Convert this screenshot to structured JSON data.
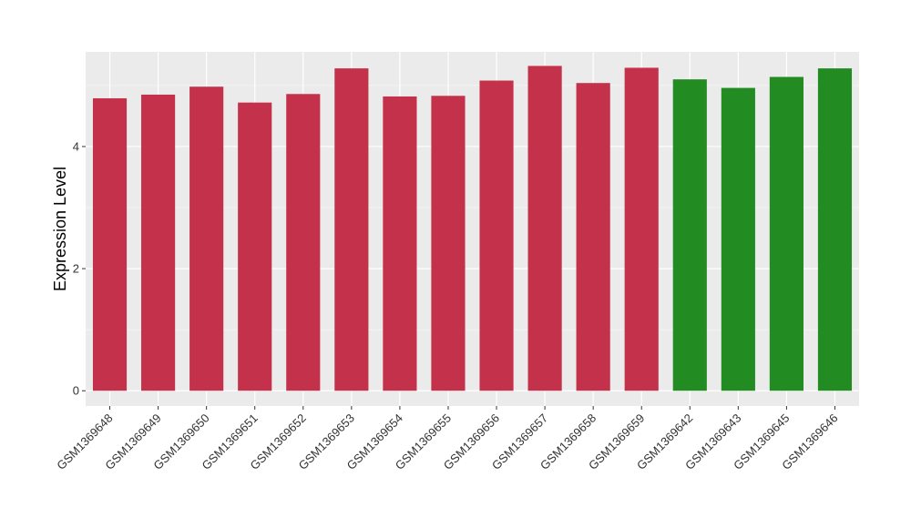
{
  "chart_data": {
    "type": "bar",
    "title": "",
    "xlabel": "",
    "ylabel": "Expression Level",
    "ylim": [
      -0.25,
      5.55
    ],
    "y_ticks": [
      0,
      2,
      4
    ],
    "grid": true,
    "legend": "none",
    "categories": [
      "GSM1369648",
      "GSM1369649",
      "GSM1369650",
      "GSM1369651",
      "GSM1369652",
      "GSM1369653",
      "GSM1369654",
      "GSM1369655",
      "GSM1369656",
      "GSM1369657",
      "GSM1369658",
      "GSM1369659",
      "GSM1369642",
      "GSM1369643",
      "GSM1369645",
      "GSM1369646"
    ],
    "values": [
      4.79,
      4.85,
      4.98,
      4.72,
      4.86,
      5.28,
      4.82,
      4.83,
      5.08,
      5.32,
      5.04,
      5.29,
      5.1,
      4.96,
      5.14,
      5.28
    ],
    "colors": [
      "#C4314B",
      "#C4314B",
      "#C4314B",
      "#C4314B",
      "#C4314B",
      "#C4314B",
      "#C4314B",
      "#C4314B",
      "#C4314B",
      "#C4314B",
      "#C4314B",
      "#C4314B",
      "#228B22",
      "#228B22",
      "#228B22",
      "#228B22"
    ],
    "panel_background": "#EBEBEB",
    "grid_color": "#FFFFFF"
  }
}
